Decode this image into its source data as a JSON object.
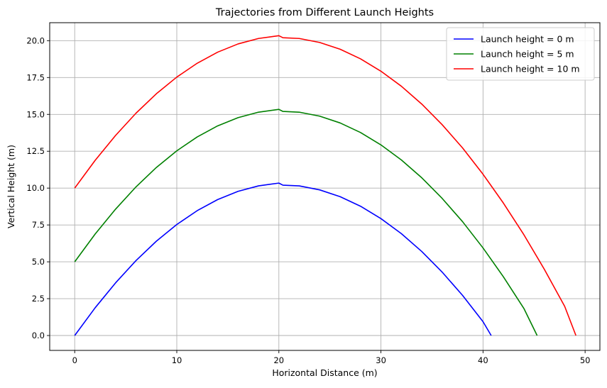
{
  "chart_data": {
    "type": "line",
    "title": "Trajectories from Different Launch Heights",
    "xlabel": "Horizontal Distance (m)",
    "ylabel": "Vertical Height (m)",
    "xlim": [
      -2.45,
      51.45
    ],
    "ylim": [
      -1.01,
      21.22
    ],
    "xticks": [
      0,
      10,
      20,
      30,
      40,
      50
    ],
    "xtick_labels": [
      "0",
      "10",
      "20",
      "30",
      "40",
      "50"
    ],
    "yticks": [
      0,
      2.5,
      5,
      7.5,
      10,
      12.5,
      15,
      17.5,
      20
    ],
    "ytick_labels": [
      "0.0",
      "2.5",
      "5.0",
      "7.5",
      "10.0",
      "12.5",
      "15.0",
      "17.5",
      "20.0"
    ],
    "grid": true,
    "legend_position": "top-right",
    "series": [
      {
        "name": "Launch height = 0 m",
        "color": "#0000ff",
        "x": [
          0,
          2,
          4,
          6,
          8,
          10,
          12,
          14,
          16,
          18,
          20,
          20.4,
          22,
          24,
          26,
          28,
          30,
          32,
          34,
          36,
          38,
          40,
          40.8
        ],
        "y": [
          0,
          1.88,
          3.57,
          5.08,
          6.4,
          7.53,
          8.47,
          9.22,
          9.78,
          10.15,
          10.34,
          10.2,
          10.15,
          9.88,
          9.42,
          8.77,
          7.93,
          6.91,
          5.7,
          4.3,
          2.72,
          0.94,
          0
        ]
      },
      {
        "name": "Launch height = 5 m",
        "color": "#008000",
        "x": [
          0,
          2,
          4,
          6,
          8,
          10,
          12,
          14,
          16,
          18,
          20,
          20.4,
          22,
          24,
          26,
          28,
          30,
          32,
          34,
          36,
          38,
          40,
          42,
          44,
          45.3
        ],
        "y": [
          5.0,
          6.88,
          8.57,
          10.08,
          11.4,
          12.53,
          13.47,
          14.22,
          14.78,
          15.15,
          15.34,
          15.2,
          15.15,
          14.88,
          14.42,
          13.77,
          12.93,
          11.91,
          10.7,
          9.3,
          7.72,
          5.94,
          3.98,
          1.84,
          0
        ]
      },
      {
        "name": "Launch height = 10 m",
        "color": "#ff0000",
        "x": [
          0,
          2,
          4,
          6,
          8,
          10,
          12,
          14,
          16,
          18,
          20,
          20.4,
          22,
          24,
          26,
          28,
          30,
          32,
          34,
          36,
          38,
          40,
          42,
          44,
          46,
          48,
          49.1
        ],
        "y": [
          10.0,
          11.88,
          13.57,
          15.08,
          16.4,
          17.53,
          18.47,
          19.22,
          19.78,
          20.15,
          20.34,
          20.2,
          20.15,
          19.88,
          19.42,
          18.77,
          17.93,
          16.91,
          15.7,
          14.3,
          12.72,
          10.94,
          8.98,
          6.84,
          4.5,
          1.98,
          0
        ]
      }
    ]
  }
}
